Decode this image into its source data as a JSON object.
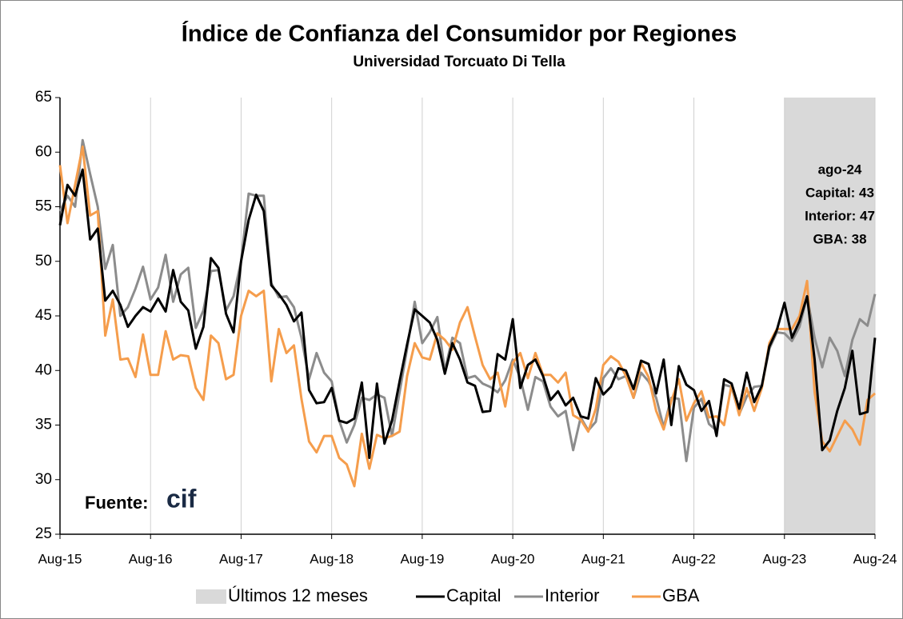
{
  "chart_data": {
    "type": "line",
    "title": "Índice de Confianza del Consumidor por Regiones",
    "subtitle": "Universidad Torcuato Di Tella",
    "categories": [
      "Aug-15",
      null,
      null,
      null,
      null,
      null,
      null,
      null,
      null,
      null,
      null,
      null,
      "Aug-16",
      null,
      null,
      null,
      null,
      null,
      null,
      null,
      null,
      null,
      null,
      null,
      "Aug-17",
      null,
      null,
      null,
      null,
      null,
      null,
      null,
      null,
      null,
      null,
      null,
      "Aug-18",
      null,
      null,
      null,
      null,
      null,
      null,
      null,
      null,
      null,
      null,
      null,
      "Aug-19",
      null,
      null,
      null,
      null,
      null,
      null,
      null,
      null,
      null,
      null,
      null,
      "Aug-20",
      null,
      null,
      null,
      null,
      null,
      null,
      null,
      null,
      null,
      null,
      null,
      "Aug-21",
      null,
      null,
      null,
      null,
      null,
      null,
      null,
      null,
      null,
      null,
      null,
      "Aug-22",
      null,
      null,
      null,
      null,
      null,
      null,
      null,
      null,
      null,
      null,
      null,
      "Aug-23",
      null,
      null,
      null,
      null,
      null,
      null,
      null,
      null,
      null,
      null,
      null,
      "Aug-24"
    ],
    "series": [
      {
        "name": "Capital",
        "color": "#000000",
        "width": 3,
        "values": [
          53.3,
          57,
          56,
          58.4,
          52,
          53,
          46.4,
          47.3,
          46,
          44,
          45,
          45.8,
          45.4,
          46.6,
          45.4,
          49.2,
          46.3,
          45.5,
          42,
          44,
          50.3,
          49.4,
          45.2,
          43.5,
          50,
          53.8,
          56.1,
          54.6,
          47.8,
          47,
          46,
          44.5,
          45.3,
          38.2,
          37,
          37.1,
          38.4,
          35.4,
          35.2,
          35.6,
          38.9,
          32,
          38.8,
          33.3,
          35.4,
          39,
          42.4,
          45.6,
          45,
          44.4,
          42.8,
          39.7,
          42.5,
          41,
          38.9,
          38.6,
          36.2,
          36.3,
          41.5,
          41,
          44.7,
          38.4,
          40.5,
          41,
          39.5,
          37.3,
          38.1,
          36.8,
          37.5,
          35.8,
          35.6,
          39.3,
          37.8,
          38.5,
          40.2,
          40,
          38.3,
          40.9,
          40.6,
          37.9,
          41,
          35,
          40.4,
          38.7,
          38.2,
          36.3,
          37.2,
          34,
          39.2,
          38.8,
          36.5,
          39.8,
          37.1,
          38.6,
          42.2,
          43.7,
          46.2,
          43,
          44.5,
          46.8,
          41,
          32.7,
          33.6,
          36.3,
          38.4,
          41.8,
          36,
          36.2,
          43
        ]
      },
      {
        "name": "Interior",
        "color": "#8c8c8c",
        "width": 3,
        "values": [
          54.6,
          56,
          55,
          61.1,
          58,
          55,
          49.3,
          51.5,
          45,
          45.8,
          47.5,
          49.5,
          46.5,
          47.6,
          50.6,
          46.3,
          48.8,
          49.4,
          43.9,
          45.5,
          49.1,
          49.2,
          45.5,
          46.8,
          50,
          56.2,
          56,
          56,
          48,
          46.7,
          46.8,
          45.8,
          43,
          39.2,
          41.6,
          39.8,
          39,
          35.4,
          33.4,
          35,
          37.5,
          37.3,
          37.8,
          37.5,
          34,
          38,
          42,
          46.3,
          42.5,
          43.5,
          44.9,
          40,
          43,
          42.5,
          39.3,
          39.5,
          38.8,
          38.5,
          38,
          39.1,
          41,
          39.3,
          36.4,
          39.4,
          39,
          36.7,
          35.8,
          36.3,
          32.7,
          35.7,
          34.5,
          35.3,
          39.3,
          40.2,
          39.2,
          39.5,
          37.5,
          39.8,
          39,
          37.5,
          34.8,
          37.5,
          37.4,
          31.7,
          36.6,
          37.4,
          35.1,
          34.5,
          38.7,
          38.5,
          36,
          37.6,
          38.5,
          38.6,
          42,
          43.5,
          43.4,
          42.7,
          44,
          46.8,
          43,
          40.3,
          43,
          41.8,
          39.5,
          42.8,
          44.7,
          44.1,
          47
        ]
      },
      {
        "name": "GBA",
        "color": "#f59d4c",
        "width": 3,
        "values": [
          58.8,
          53.5,
          57,
          60.5,
          54.2,
          54.6,
          43.2,
          46.5,
          41,
          41.1,
          39.4,
          43.3,
          39.6,
          39.6,
          43.6,
          41,
          41.4,
          41.3,
          38.4,
          37.3,
          43.2,
          42.5,
          39.2,
          39.6,
          45,
          47.3,
          46.8,
          47.3,
          39,
          43.8,
          41.6,
          42.3,
          37.4,
          33.5,
          32.5,
          34,
          34,
          32,
          31.4,
          29.4,
          34.2,
          31,
          34.1,
          33.8,
          34,
          34.4,
          39.5,
          42.5,
          41.2,
          41,
          43.4,
          42.8,
          41.9,
          44.4,
          45.8,
          43.1,
          40.5,
          39.2,
          39.8,
          36.7,
          40.7,
          41.6,
          39.3,
          41.6,
          39.6,
          39.6,
          38.9,
          39.8,
          35.9,
          35.5,
          34.4,
          36.5,
          40.5,
          41.3,
          40.8,
          39.5,
          37.5,
          40.7,
          39.4,
          36.3,
          34.6,
          37.2,
          39.2,
          35.4,
          37,
          38.1,
          35.7,
          35.8,
          35,
          38.7,
          35.9,
          38.4,
          36.3,
          38.4,
          42.5,
          43.8,
          43.8,
          43.8,
          45,
          48.2,
          38,
          33.5,
          32.6,
          34,
          35.4,
          34.6,
          33.2,
          37.3,
          37.9
        ]
      }
    ],
    "highlight": {
      "name": "Últimos 12 meses",
      "start": "Aug-23",
      "end": "Aug-24",
      "color": "#d9d9d9"
    },
    "annotation": [
      "ago-24",
      "Capital: 43",
      "Interior: 47",
      "GBA: 38"
    ],
    "source_label": "Fuente:",
    "source_logo": "cif",
    "ylim": [
      25,
      65
    ],
    "yticks": [
      25,
      30,
      35,
      40,
      45,
      50,
      55,
      60,
      65
    ],
    "grid": true
  }
}
